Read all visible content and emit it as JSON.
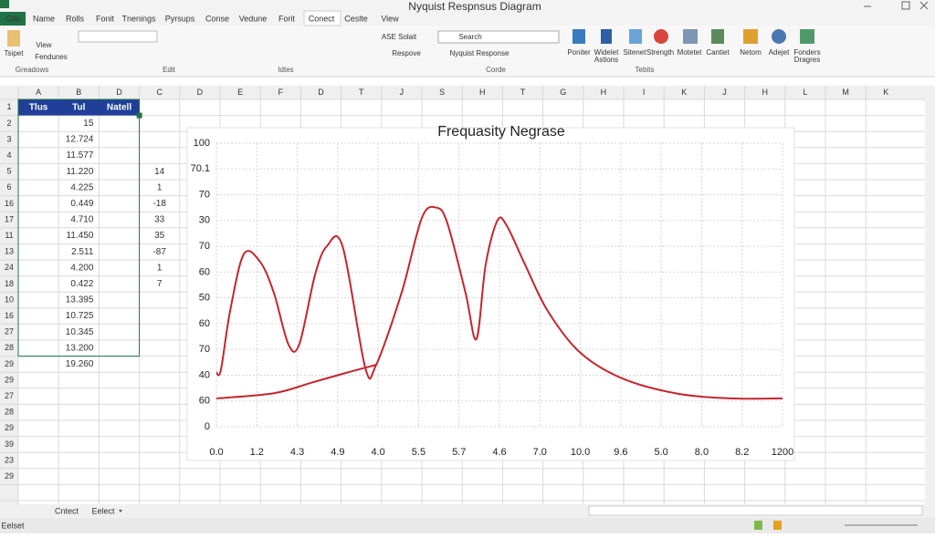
{
  "window": {
    "title": "Nyquist Respnsus Diagram",
    "tabs": [
      "Gile",
      "Name",
      "Rolls",
      "Fonit",
      "Tnenings",
      "Pyrsups",
      "Conse",
      "Vedune",
      "Forit",
      "Conect",
      "Ceslte",
      "View"
    ]
  },
  "ribbon": {
    "buttons": [
      "Tsipet",
      "View",
      "Fendunes",
      "ASE Solait",
      "Search",
      "Respove",
      "Nyquist Response",
      "Poniter",
      "Widelet",
      "Astions",
      "Sitenet",
      "Strength",
      "Motetet",
      "Cantiet",
      "Netom",
      "Adejet",
      "Fonders",
      "Dragres"
    ],
    "groups": [
      "Greadows",
      "Edit",
      "Idtes",
      "Corde",
      "Tebits"
    ]
  },
  "sheet": {
    "columns": [
      "A",
      "B",
      "D",
      "C",
      "D",
      "E",
      "F",
      "D",
      "T",
      "J",
      "S",
      "H",
      "T",
      "G",
      "H",
      "I",
      "K",
      "J",
      "H",
      "L",
      "M",
      "K"
    ],
    "rows": [
      "1",
      "2",
      "3",
      "4",
      "5",
      "6",
      "16",
      "17",
      "11",
      "13",
      "24",
      "18",
      "10",
      "16",
      "27",
      "28",
      "29",
      "29",
      "27",
      "28",
      "29",
      "39",
      "23",
      "29"
    ],
    "header": [
      "Tlus",
      "Tul",
      "Natell"
    ],
    "col_b": [
      "15",
      "12.724",
      "11.577",
      "11.220",
      "4.225",
      "0.449",
      "4.710",
      "11.450",
      "2.511",
      "4.200",
      "0.422",
      "13.395",
      "10.725",
      "10.345",
      "13.200",
      "19.260"
    ],
    "col_c": [
      "14",
      "1",
      "-18",
      "33",
      "35",
      "-87",
      "1",
      "7"
    ]
  },
  "sheet_tabs": [
    "Cntect",
    "Eelect"
  ],
  "status": "Eelset",
  "chart_data": {
    "type": "line",
    "title": "Frequasity Negrase",
    "xlim": [
      0,
      14
    ],
    "ylim": [
      0,
      11
    ],
    "grid": true,
    "xticks": [
      {
        "value": 0,
        "label": "0.0"
      },
      {
        "value": 1,
        "label": "1.2"
      },
      {
        "value": 2,
        "label": "4.3"
      },
      {
        "value": 3,
        "label": "4.9"
      },
      {
        "value": 4,
        "label": "4.0"
      },
      {
        "value": 5,
        "label": "5.5"
      },
      {
        "value": 6,
        "label": "5.7"
      },
      {
        "value": 7,
        "label": "4.6"
      },
      {
        "value": 8,
        "label": "7.0"
      },
      {
        "value": 9,
        "label": "10.0"
      },
      {
        "value": 10,
        "label": "9.6"
      },
      {
        "value": 11,
        "label": "5.0"
      },
      {
        "value": 12,
        "label": "8.0"
      },
      {
        "value": 13,
        "label": "8.2"
      },
      {
        "value": 14,
        "label": "1200"
      }
    ],
    "yticks": [
      0,
      {
        "value": 1,
        "label": "60"
      },
      {
        "value": 2,
        "label": "40"
      },
      {
        "value": 3,
        "label": "70"
      },
      {
        "value": 4,
        "label": "60"
      },
      {
        "value": 5,
        "label": "50"
      },
      {
        "value": 6,
        "label": "60"
      },
      {
        "value": 7,
        "label": "70"
      },
      {
        "value": 8,
        "label": "30"
      },
      {
        "value": 9,
        "label": "70"
      },
      {
        "value": 10,
        "label": "70.1"
      },
      {
        "value": 11,
        "label": "100"
      }
    ],
    "series": [
      {
        "color": "#c4262e",
        "x": [
          0,
          0.11,
          0.34,
          0.68,
          1.08,
          1.42,
          1.78,
          2.05,
          2.44,
          2.73,
          3.12,
          3.68,
          3.95,
          4.58,
          5.08,
          5.44,
          5.71,
          6.16,
          6.43,
          6.66,
          6.95,
          7.18,
          7.63,
          8.19,
          8.98,
          10.0,
          11.35,
          12.71,
          14
        ],
        "values": [
          2.1,
          2.2,
          4.5,
          6.7,
          6.4,
          5.2,
          3.2,
          3.2,
          5.9,
          7.0,
          7.0,
          2.3,
          2.4,
          5.2,
          8.1,
          8.5,
          7.9,
          5.2,
          3.4,
          6.3,
          8.0,
          7.8,
          6.3,
          4.5,
          2.9,
          1.9,
          1.3,
          1.1,
          1.1
        ]
      },
      {
        "color": "#c4262e",
        "x": [
          0,
          1.42,
          2.33,
          3.23,
          3.95
        ],
        "values": [
          1.1,
          1.3,
          1.7,
          2.1,
          2.4
        ]
      }
    ]
  }
}
